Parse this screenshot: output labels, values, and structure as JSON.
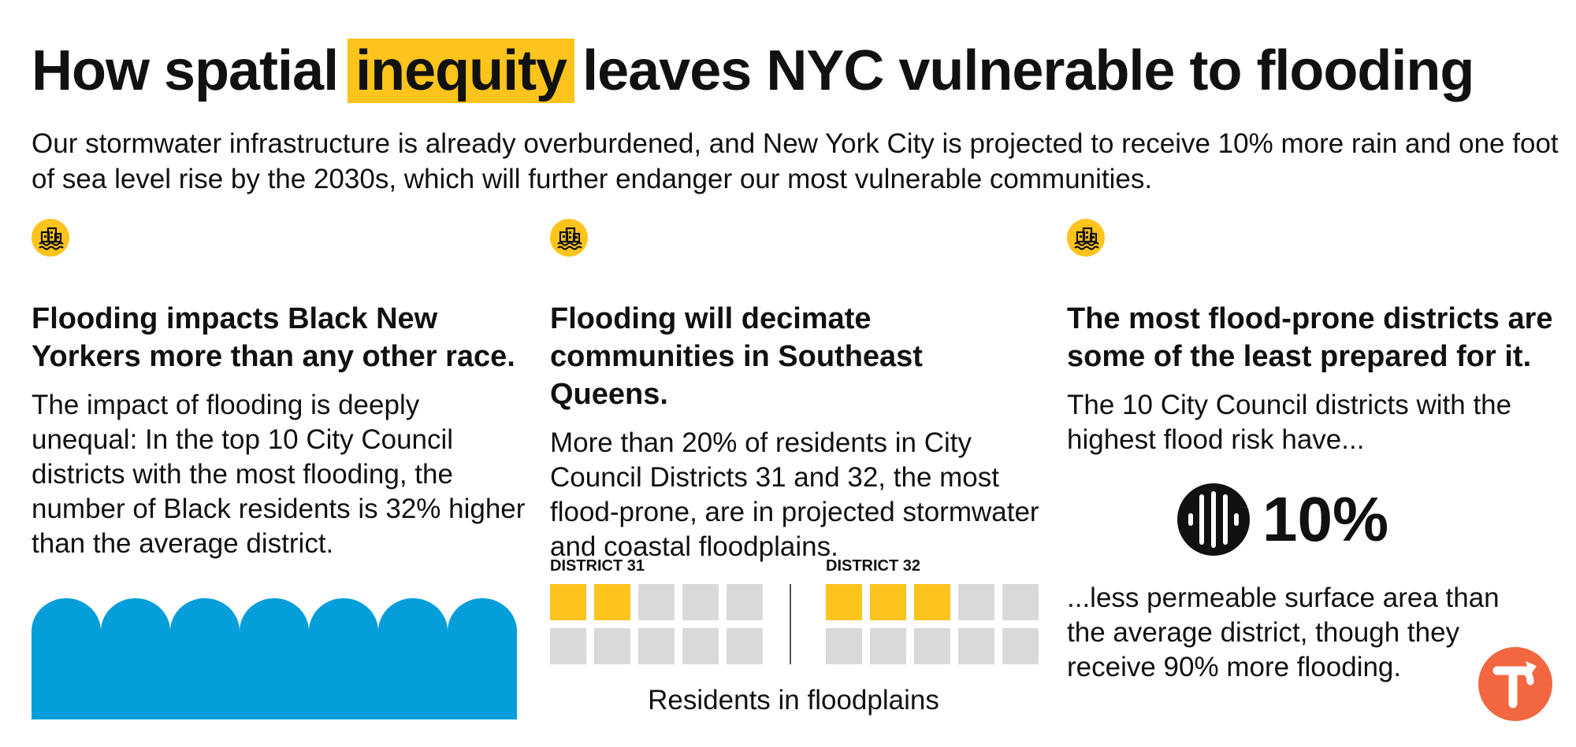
{
  "title": {
    "before": "How spatial",
    "highlight": "inequity",
    "after": "leaves NYC vulnerable to flooding",
    "highlight_color": "#fcc41c"
  },
  "subtitle": "Our stormwater infrastructure is already overburdened, and New York City is projected to receive 10% more rain and one foot of sea level rise by the 2030s, which will further endanger our most vulnerable communities.",
  "columns": [
    {
      "icon": "flooded-buildings-icon",
      "heading": "Flooding impacts Black New Yorkers more than any other race.",
      "body": "The impact of flooding is deeply unequal: In the top 10 City Council districts with the most flooding, the number of Black residents is 32% higher than the average district.",
      "graphic": "wave-icon",
      "graphic_color": "#049edb"
    },
    {
      "icon": "flooded-buildings-icon",
      "heading": "Flooding will decimate communities in Southeast Queens.",
      "body": "More than 20% of residents in City Council Districts 31 and 32, the most flood-prone, are in projected stormwater and coastal floodplains."
    },
    {
      "icon": "flooded-buildings-icon",
      "heading": "The most flood-prone districts are some of the least prepared for it.",
      "body_before": "The 10 City Council districts with the highest flood risk have...",
      "stat_icon": "storm-drain-icon",
      "stat_value": "10%",
      "body_after": "...less permeable surface area than the average district, though they receive 90% more flooding."
    }
  ],
  "chart_data": {
    "type": "waffle",
    "caption": "Residents in floodplains",
    "units_per_district": 10,
    "filled_color": "#fcc41c",
    "empty_color": "#d9d9d9",
    "series": [
      {
        "name": "DISTRICT 31",
        "filled": 2,
        "total": 10
      },
      {
        "name": "DISTRICT 32",
        "filled": 3,
        "total": 10
      }
    ]
  },
  "colors": {
    "accent": "#fcc41c",
    "water": "#049edb",
    "brand": "#f26640",
    "text": "#111111"
  },
  "logo": "brand-logo-icon"
}
